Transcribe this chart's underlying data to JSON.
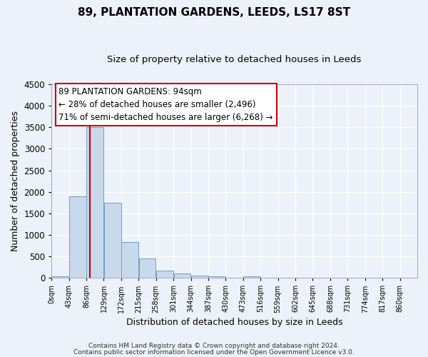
{
  "title": "89, PLANTATION GARDENS, LEEDS, LS17 8ST",
  "subtitle": "Size of property relative to detached houses in Leeds",
  "xlabel": "Distribution of detached houses by size in Leeds",
  "ylabel": "Number of detached properties",
  "bin_edges": [
    0,
    43,
    86,
    129,
    172,
    215,
    258,
    301,
    344,
    387,
    430,
    473,
    516,
    559,
    602,
    645,
    688,
    731,
    774,
    817,
    860
  ],
  "bar_values": [
    40,
    1900,
    3500,
    1750,
    840,
    450,
    175,
    100,
    60,
    40,
    5,
    40,
    0,
    0,
    0,
    0,
    0,
    0,
    0,
    0
  ],
  "bar_color": "#c9d9ec",
  "bar_edge_color": "#6ca0c8",
  "property_size": 94,
  "vline_color": "#cc0000",
  "ylim": [
    0,
    4500
  ],
  "annotation_title": "89 PLANTATION GARDENS: 94sqm",
  "annotation_line1": "← 28% of detached houses are smaller (2,496)",
  "annotation_line2": "71% of semi-detached houses are larger (6,268) →",
  "annotation_box_color": "#ffffff",
  "annotation_border_color": "#cc0000",
  "footer_line1": "Contains HM Land Registry data © Crown copyright and database right 2024.",
  "footer_line2": "Contains public sector information licensed under the Open Government Licence v3.0.",
  "background_color": "#edf2fa",
  "grid_color": "#ffffff",
  "tick_labels": [
    "0sqm",
    "43sqm",
    "86sqm",
    "129sqm",
    "172sqm",
    "215sqm",
    "258sqm",
    "301sqm",
    "344sqm",
    "387sqm",
    "430sqm",
    "473sqm",
    "516sqm",
    "559sqm",
    "602sqm",
    "645sqm",
    "688sqm",
    "731sqm",
    "774sqm",
    "817sqm",
    "860sqm"
  ]
}
